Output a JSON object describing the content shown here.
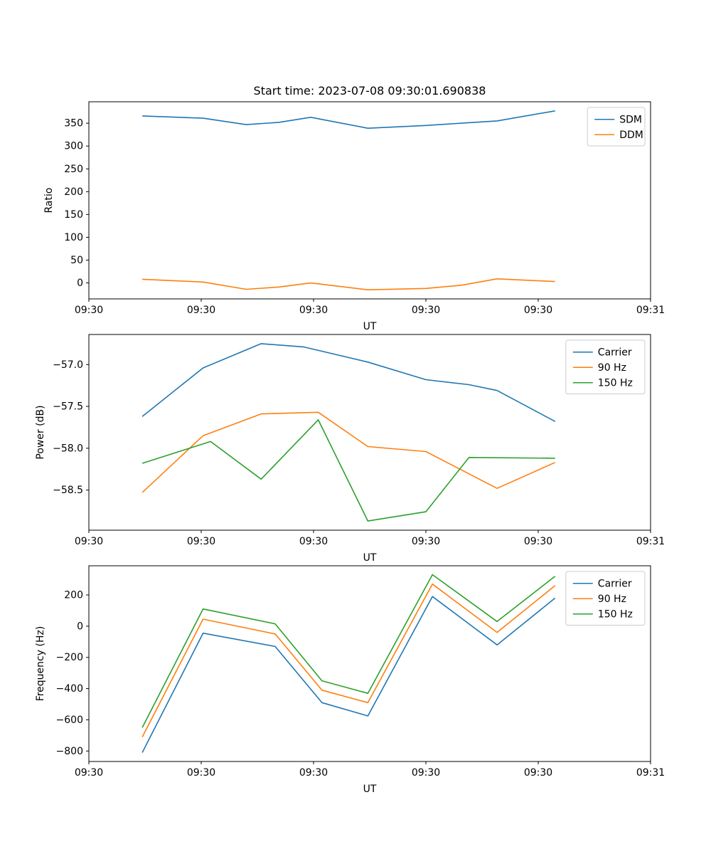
{
  "figure": {
    "background": "#ffffff"
  },
  "colors": {
    "blue": "#1f77b4",
    "orange": "#ff7f0e",
    "green": "#2ca02c"
  },
  "chart_data": [
    {
      "type": "line",
      "title": "Start time: 2023-07-08 09:30:01.690838",
      "xlabel": "UT",
      "ylabel": "Ratio",
      "x_unit": "seconds after 09:30:00",
      "xlim": [
        0,
        60
      ],
      "ylim": [
        -35,
        397
      ],
      "xticks": [
        0,
        12,
        24,
        36,
        48,
        60
      ],
      "xtick_labels": [
        "09:30",
        "09:30",
        "09:30",
        "09:30",
        "09:30",
        "09:31"
      ],
      "yticks": [
        0,
        50,
        100,
        150,
        200,
        250,
        300,
        350
      ],
      "ytick_labels": [
        "0",
        "50",
        "100",
        "150",
        "200",
        "250",
        "300",
        "350"
      ],
      "legend_loc": "upper right",
      "grid": false,
      "series": [
        {
          "name": "SDM",
          "color": "#1f77b4",
          "x": [
            5.7,
            12.2,
            16.8,
            20.3,
            23.7,
            29.8,
            36.0,
            39.8,
            43.6,
            49.8
          ],
          "y": [
            366,
            361,
            347,
            352,
            363,
            339,
            345,
            350,
            355,
            377
          ]
        },
        {
          "name": "DDM",
          "color": "#ff7f0e",
          "x": [
            5.7,
            12.2,
            16.8,
            20.3,
            23.7,
            29.8,
            36.0,
            39.8,
            43.6,
            49.8
          ],
          "y": [
            8,
            2,
            -14,
            -9,
            0,
            -15,
            -12,
            -5,
            9,
            3
          ]
        }
      ]
    },
    {
      "type": "line",
      "title": "",
      "xlabel": "UT",
      "ylabel": "Power (dB)",
      "x_unit": "seconds after 09:30:00",
      "xlim": [
        0,
        60
      ],
      "ylim": [
        -58.98,
        -56.64
      ],
      "xticks": [
        0,
        12,
        24,
        36,
        48,
        60
      ],
      "xtick_labels": [
        "09:30",
        "09:30",
        "09:30",
        "09:30",
        "09:30",
        "09:31"
      ],
      "yticks": [
        -57.0,
        -57.5,
        -58.0,
        -58.5
      ],
      "ytick_labels": [
        "−57.0",
        "−57.5",
        "−58.0",
        "−58.5"
      ],
      "legend_loc": "upper right",
      "grid": false,
      "series": [
        {
          "name": "Carrier",
          "color": "#1f77b4",
          "x": [
            5.7,
            12.2,
            18.4,
            23.0,
            29.8,
            36.0,
            40.6,
            43.6,
            49.8
          ],
          "y": [
            -57.62,
            -57.04,
            -56.75,
            -56.79,
            -56.97,
            -57.18,
            -57.24,
            -57.31,
            -57.68
          ]
        },
        {
          "name": "90 Hz",
          "color": "#ff7f0e",
          "x": [
            5.7,
            12.2,
            18.4,
            24.5,
            29.8,
            36.0,
            43.6,
            49.8
          ],
          "y": [
            -58.53,
            -57.85,
            -57.59,
            -57.57,
            -57.98,
            -58.04,
            -58.48,
            -58.17
          ]
        },
        {
          "name": "150 Hz",
          "color": "#2ca02c",
          "x": [
            5.7,
            13.0,
            18.4,
            24.5,
            29.8,
            36.0,
            40.6,
            49.8
          ],
          "y": [
            -58.18,
            -57.92,
            -58.37,
            -57.66,
            -58.87,
            -58.76,
            -58.11,
            -58.12
          ]
        }
      ]
    },
    {
      "type": "line",
      "title": "",
      "xlabel": "UT",
      "ylabel": "Frequency (Hz)",
      "x_unit": "seconds after 09:30:00",
      "xlim": [
        0,
        60
      ],
      "ylim": [
        -867,
        387
      ],
      "xticks": [
        0,
        12,
        24,
        36,
        48,
        60
      ],
      "xtick_labels": [
        "09:30",
        "09:30",
        "09:30",
        "09:30",
        "09:30",
        "09:31"
      ],
      "yticks": [
        200,
        0,
        -200,
        -400,
        -600,
        -800
      ],
      "ytick_labels": [
        "200",
        "0",
        "−200",
        "−400",
        "−600",
        "−800"
      ],
      "legend_loc": "upper right",
      "grid": false,
      "series": [
        {
          "name": "Carrier",
          "color": "#1f77b4",
          "x": [
            5.7,
            12.2,
            19.9,
            24.9,
            29.8,
            36.7,
            43.6,
            49.8
          ],
          "y": [
            -810,
            -45,
            -130,
            -490,
            -575,
            190,
            -120,
            180
          ]
        },
        {
          "name": "90 Hz",
          "color": "#ff7f0e",
          "x": [
            5.7,
            12.2,
            19.9,
            24.9,
            29.8,
            36.7,
            43.6,
            49.8
          ],
          "y": [
            -710,
            45,
            -50,
            -410,
            -490,
            270,
            -40,
            260
          ]
        },
        {
          "name": "150 Hz",
          "color": "#2ca02c",
          "x": [
            5.7,
            12.2,
            19.9,
            24.9,
            29.8,
            36.7,
            43.6,
            49.8
          ],
          "y": [
            -650,
            110,
            15,
            -350,
            -430,
            330,
            30,
            320
          ]
        }
      ]
    }
  ]
}
